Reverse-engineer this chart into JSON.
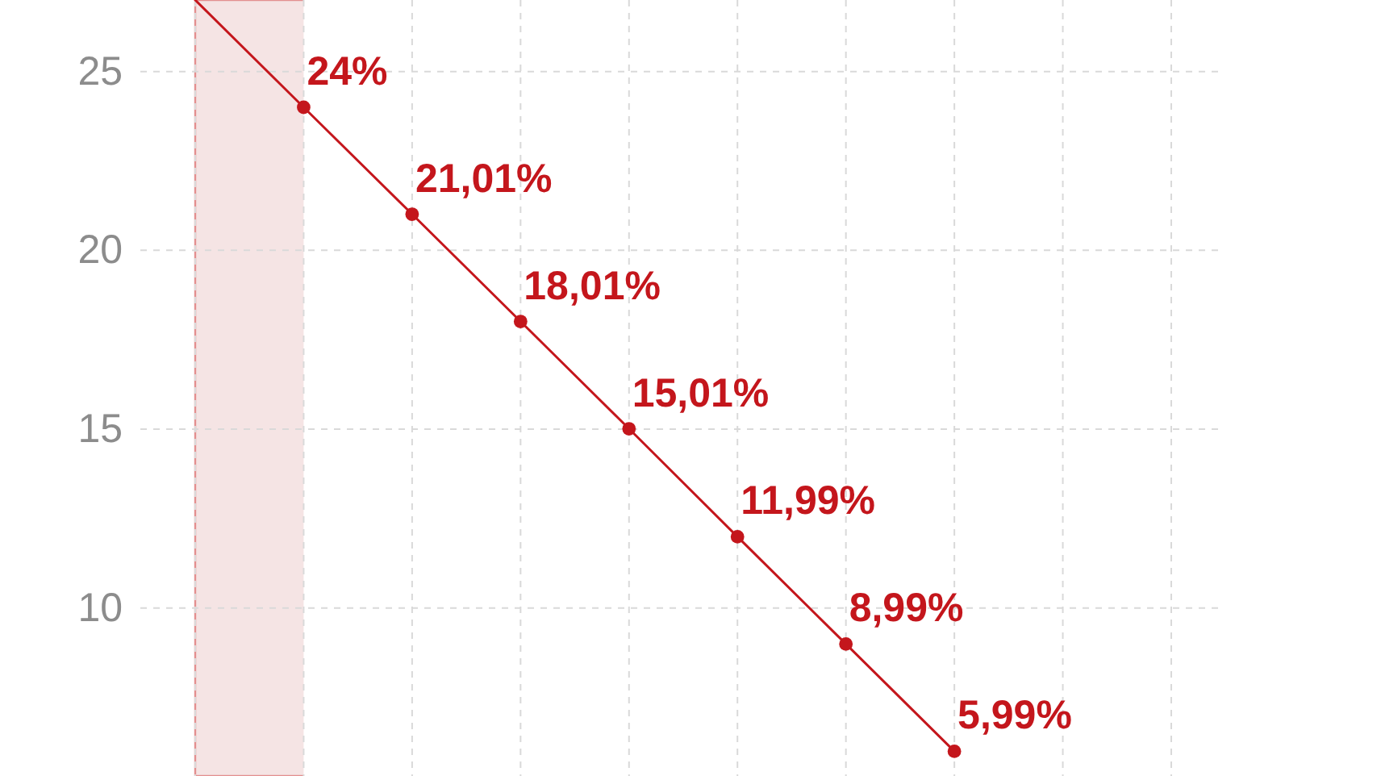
{
  "chart_data": {
    "type": "line",
    "categories": [
      null,
      null,
      null,
      null,
      null,
      null,
      null,
      null,
      null,
      null
    ],
    "ylim": [
      5.3,
      27
    ],
    "yticks": [
      10,
      15,
      20,
      25
    ],
    "grid": true,
    "tick_labels": "y",
    "series": [
      {
        "color": "#c4161c",
        "marker": "none",
        "values": [
          27,
          24,
          21.01,
          18.01,
          15.01,
          11.99,
          8.99,
          5.99,
          null,
          null
        ]
      },
      {
        "type": "scatter",
        "color": "#c4161c",
        "marker": "circle",
        "values": [
          null,
          24,
          21.01,
          18.01,
          15.01,
          11.99,
          8.99,
          5.99,
          null,
          null
        ],
        "value_labels": [
          null,
          "24%",
          "21,01%",
          "18,01%",
          "15,01%",
          "11,99%",
          "8,99%",
          "5,99%",
          null,
          null
        ]
      }
    ]
  }
}
